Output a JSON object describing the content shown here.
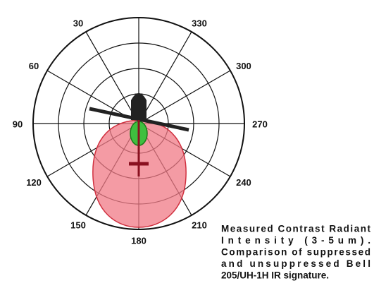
{
  "angle_labels": [
    30,
    60,
    90,
    120,
    150,
    180,
    210,
    240,
    270,
    300,
    330
  ],
  "caption": [
    "Measured Contrast Radiant",
    "Intensity (3-5um).",
    "Comparison of suppressed",
    "and unsuppressed Bell",
    "205/UH-1H IR signature."
  ]
}
